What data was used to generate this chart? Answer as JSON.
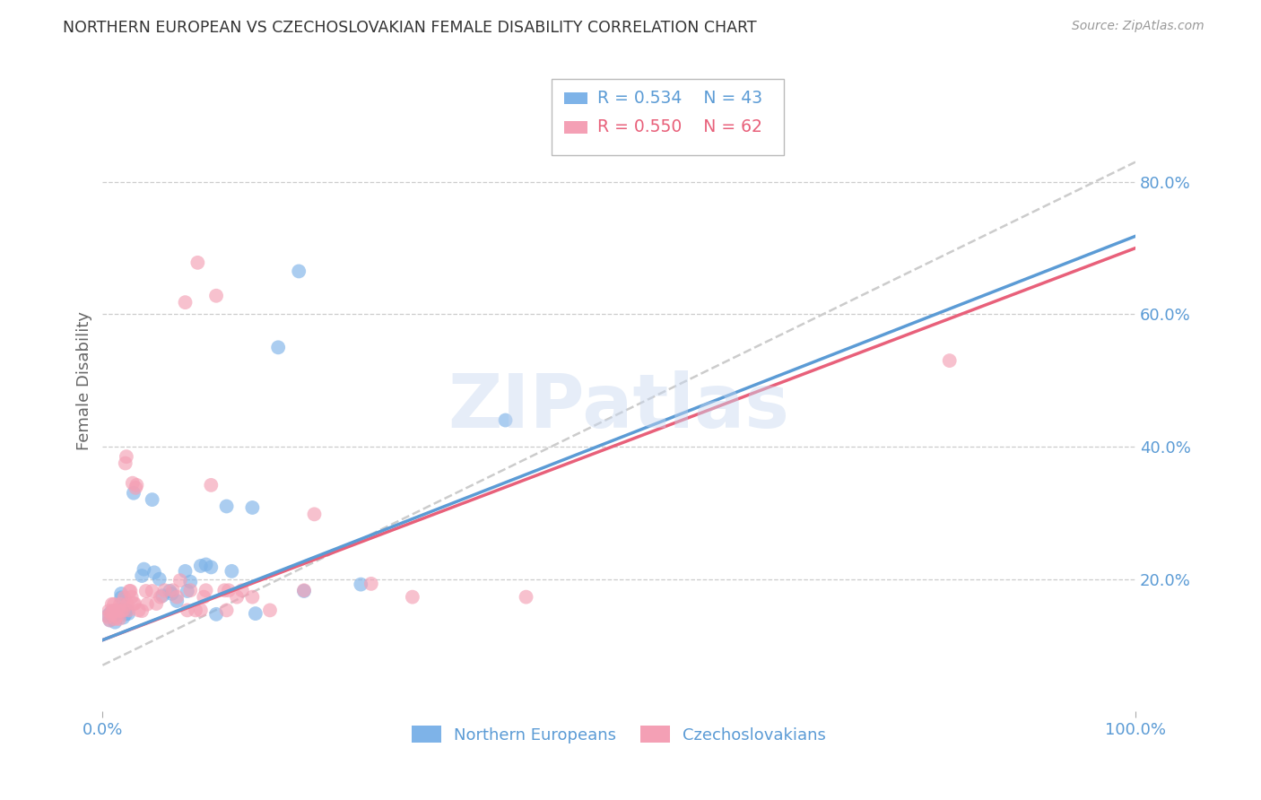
{
  "title": "NORTHERN EUROPEAN VS CZECHOSLOVAKIAN FEMALE DISABILITY CORRELATION CHART",
  "source": "Source: ZipAtlas.com",
  "ylabel": "Female Disability",
  "xlim": [
    0,
    1
  ],
  "ylim": [
    0,
    1
  ],
  "ytick_labels": [
    "20.0%",
    "40.0%",
    "60.0%",
    "80.0%"
  ],
  "ytick_values": [
    0.2,
    0.4,
    0.6,
    0.8
  ],
  "legend_r1": "R = 0.534",
  "legend_n1": "N = 43",
  "legend_r2": "R = 0.550",
  "legend_n2": "N = 62",
  "blue_color": "#7EB3E8",
  "pink_color": "#F4A0B5",
  "blue_line_color": "#5B9BD5",
  "pink_line_color": "#E8607A",
  "dashed_line_color": "#CCCCCC",
  "title_color": "#333333",
  "axis_label_color": "#5B9BD5",
  "watermark": "ZIPatlas",
  "blue_line": [
    0.0,
    0.105,
    1.0,
    0.73
  ],
  "pink_line": [
    0.0,
    0.105,
    1.0,
    0.73
  ],
  "dashed_line": [
    0.0,
    0.08,
    1.0,
    0.8
  ],
  "blue_points": [
    [
      0.005,
      0.145
    ],
    [
      0.007,
      0.138
    ],
    [
      0.008,
      0.15
    ],
    [
      0.009,
      0.148
    ],
    [
      0.01,
      0.143
    ],
    [
      0.01,
      0.15
    ],
    [
      0.012,
      0.135
    ],
    [
      0.013,
      0.148
    ],
    [
      0.015,
      0.153
    ],
    [
      0.016,
      0.152
    ],
    [
      0.018,
      0.172
    ],
    [
      0.018,
      0.178
    ],
    [
      0.019,
      0.153
    ],
    [
      0.02,
      0.142
    ],
    [
      0.022,
      0.147
    ],
    [
      0.023,
      0.153
    ],
    [
      0.025,
      0.148
    ],
    [
      0.03,
      0.33
    ],
    [
      0.038,
      0.205
    ],
    [
      0.04,
      0.215
    ],
    [
      0.048,
      0.32
    ],
    [
      0.05,
      0.21
    ],
    [
      0.055,
      0.2
    ],
    [
      0.058,
      0.175
    ],
    [
      0.065,
      0.182
    ],
    [
      0.067,
      0.178
    ],
    [
      0.072,
      0.167
    ],
    [
      0.08,
      0.212
    ],
    [
      0.082,
      0.182
    ],
    [
      0.085,
      0.196
    ],
    [
      0.095,
      0.22
    ],
    [
      0.1,
      0.222
    ],
    [
      0.105,
      0.218
    ],
    [
      0.11,
      0.147
    ],
    [
      0.12,
      0.31
    ],
    [
      0.125,
      0.212
    ],
    [
      0.145,
      0.308
    ],
    [
      0.148,
      0.148
    ],
    [
      0.17,
      0.55
    ],
    [
      0.19,
      0.665
    ],
    [
      0.195,
      0.182
    ],
    [
      0.25,
      0.192
    ],
    [
      0.39,
      0.44
    ]
  ],
  "pink_points": [
    [
      0.005,
      0.143
    ],
    [
      0.006,
      0.152
    ],
    [
      0.007,
      0.138
    ],
    [
      0.008,
      0.148
    ],
    [
      0.009,
      0.162
    ],
    [
      0.01,
      0.152
    ],
    [
      0.011,
      0.162
    ],
    [
      0.012,
      0.14
    ],
    [
      0.013,
      0.153
    ],
    [
      0.014,
      0.143
    ],
    [
      0.015,
      0.152
    ],
    [
      0.016,
      0.14
    ],
    [
      0.017,
      0.162
    ],
    [
      0.018,
      0.152
    ],
    [
      0.02,
      0.153
    ],
    [
      0.021,
      0.172
    ],
    [
      0.022,
      0.375
    ],
    [
      0.023,
      0.385
    ],
    [
      0.024,
      0.162
    ],
    [
      0.025,
      0.153
    ],
    [
      0.026,
      0.182
    ],
    [
      0.027,
      0.182
    ],
    [
      0.028,
      0.173
    ],
    [
      0.029,
      0.345
    ],
    [
      0.03,
      0.163
    ],
    [
      0.031,
      0.163
    ],
    [
      0.032,
      0.338
    ],
    [
      0.033,
      0.342
    ],
    [
      0.035,
      0.153
    ],
    [
      0.038,
      0.152
    ],
    [
      0.042,
      0.182
    ],
    [
      0.043,
      0.162
    ],
    [
      0.048,
      0.182
    ],
    [
      0.052,
      0.163
    ],
    [
      0.056,
      0.173
    ],
    [
      0.06,
      0.183
    ],
    [
      0.068,
      0.183
    ],
    [
      0.072,
      0.173
    ],
    [
      0.075,
      0.198
    ],
    [
      0.08,
      0.618
    ],
    [
      0.082,
      0.153
    ],
    [
      0.085,
      0.183
    ],
    [
      0.09,
      0.153
    ],
    [
      0.092,
      0.678
    ],
    [
      0.095,
      0.153
    ],
    [
      0.098,
      0.173
    ],
    [
      0.1,
      0.183
    ],
    [
      0.105,
      0.342
    ],
    [
      0.11,
      0.628
    ],
    [
      0.118,
      0.183
    ],
    [
      0.12,
      0.153
    ],
    [
      0.122,
      0.183
    ],
    [
      0.13,
      0.173
    ],
    [
      0.135,
      0.183
    ],
    [
      0.145,
      0.173
    ],
    [
      0.162,
      0.153
    ],
    [
      0.195,
      0.183
    ],
    [
      0.205,
      0.298
    ],
    [
      0.26,
      0.193
    ],
    [
      0.3,
      0.173
    ],
    [
      0.41,
      0.173
    ],
    [
      0.82,
      0.53
    ]
  ]
}
